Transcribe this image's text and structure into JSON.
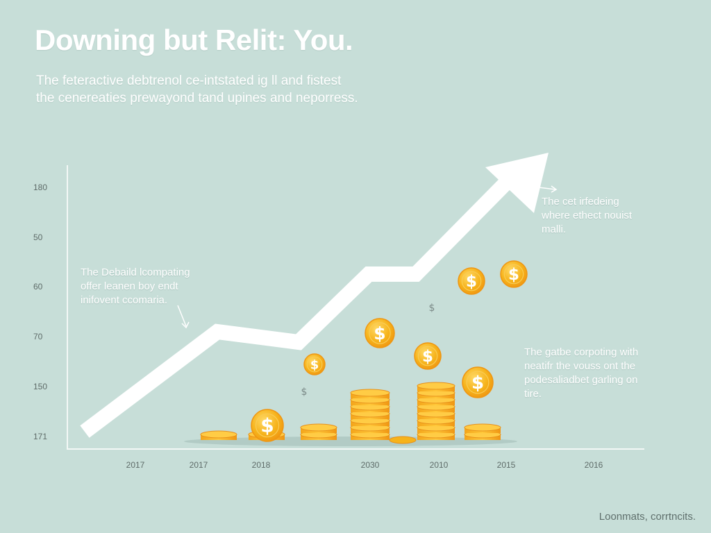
{
  "colors": {
    "background": "#c7ded8",
    "arrow": "#ffffff",
    "coin": "#f6b31b",
    "coin_edge": "#f08f10",
    "axis": "#f3f8f6"
  },
  "header": {
    "title": "Downing but Relit: You.",
    "subtitle_line1": "The feteractive debtrenol ce-intstated ig ll and fistest",
    "subtitle_line2": "the cenereaties prewayond tand upines and neporress."
  },
  "annotations": {
    "left": [
      "The Debaild lcompating",
      "offer leanen boy endt",
      "inifovent ccomaria."
    ],
    "top_right": [
      "The cet irfedeing",
      "where ethect nouist",
      "malli."
    ],
    "bottom_right": [
      "The gatbe corpoting with",
      "neatifr the vouss ont the",
      "podesaliadbet garling on",
      "tire."
    ]
  },
  "footer": {
    "text": "Loonmats, corrtncits."
  },
  "chart_data": {
    "type": "line",
    "title": "Downing but Relit: You.",
    "xlabel": "",
    "ylabel": "",
    "y_tick_labels": [
      "180",
      "50",
      "60",
      "70",
      "150",
      "171"
    ],
    "x_tick_labels": [
      "2017",
      "2017",
      "2018",
      "2030",
      "2010",
      "2015",
      "2016"
    ],
    "series": [
      {
        "values": [
          171,
          70,
          70,
          60,
          60,
          180
        ]
      }
    ],
    "coin_stacks": [
      {
        "category": "2017",
        "count": 1
      },
      {
        "category": "2018",
        "count": 1
      },
      {
        "category": "2018",
        "count": 2
      },
      {
        "category": "2030",
        "count": 7
      },
      {
        "category": "2010",
        "count": 8
      },
      {
        "category": "2015",
        "count": 2
      }
    ],
    "grid": false,
    "legend": "none",
    "icons": [
      "dollar-coin-icon",
      "coin-stack-icon",
      "trend-arrow-icon"
    ]
  }
}
